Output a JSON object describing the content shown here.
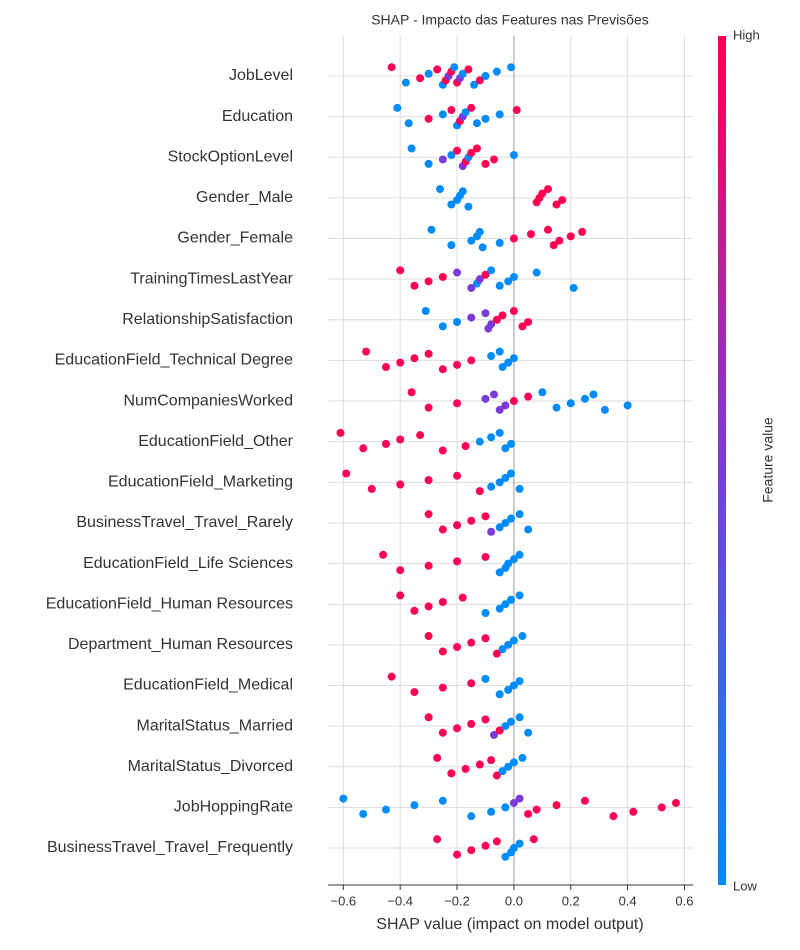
{
  "chart_data": {
    "type": "beeswarm",
    "title": "SHAP - Impacto das Features nas Previsões",
    "xlabel": "SHAP value (impact on model output)",
    "xlim": [
      -0.654,
      0.63
    ],
    "xticks": [
      {
        "value": -0.6,
        "label": "−0.6"
      },
      {
        "value": -0.4,
        "label": "−0.4"
      },
      {
        "value": -0.2,
        "label": "−0.2"
      },
      {
        "value": 0,
        "label": "0.0"
      },
      0.2,
      0.4,
      0.6
    ],
    "grid": true,
    "colorbar": {
      "label": "Feature value",
      "high": "High",
      "low": "Low",
      "colors": [
        "#008bfb",
        "#7c3ad8",
        "#ff0052"
      ]
    },
    "series": [
      {
        "name": "JobLevel",
        "values": [
          -0.43,
          -0.38,
          -0.33,
          -0.3,
          -0.27,
          -0.25,
          -0.24,
          -0.23,
          -0.22,
          -0.21,
          -0.2,
          -0.19,
          -0.18,
          -0.16,
          -0.14,
          -0.12,
          -0.1,
          -0.06,
          -0.01
        ],
        "feature_values": [
          1,
          0,
          1,
          0,
          1,
          0,
          1,
          0.5,
          1,
          0,
          1,
          0.5,
          0,
          1,
          0,
          1,
          0,
          0,
          0
        ]
      },
      {
        "name": "Education",
        "values": [
          -0.41,
          -0.37,
          -0.3,
          -0.25,
          -0.22,
          -0.2,
          -0.19,
          -0.18,
          -0.17,
          -0.15,
          -0.13,
          -0.1,
          -0.05,
          0.01
        ],
        "feature_values": [
          0,
          0,
          1,
          0,
          1,
          0,
          1,
          0.5,
          0,
          1,
          0,
          0,
          0,
          1
        ]
      },
      {
        "name": "StockOptionLevel",
        "values": [
          -0.36,
          -0.3,
          -0.25,
          -0.22,
          -0.2,
          -0.18,
          -0.17,
          -0.16,
          -0.15,
          -0.13,
          -0.1,
          -0.07,
          0.0
        ],
        "feature_values": [
          0,
          0,
          0.5,
          0,
          1,
          0.5,
          1,
          0,
          1,
          1,
          1,
          1,
          0
        ]
      },
      {
        "name": "Gender_Male",
        "values": [
          -0.26,
          -0.22,
          -0.2,
          -0.19,
          -0.18,
          -0.16,
          0.08,
          0.09,
          0.1,
          0.12,
          0.15,
          0.17
        ],
        "feature_values": [
          0,
          0,
          0,
          0,
          0,
          0,
          1,
          1,
          1,
          1,
          1,
          1
        ]
      },
      {
        "name": "Gender_Female",
        "values": [
          -0.29,
          -0.22,
          -0.15,
          -0.13,
          -0.12,
          -0.11,
          -0.05,
          0.0,
          0.06,
          0.12,
          0.14,
          0.16,
          0.2,
          0.24
        ],
        "feature_values": [
          0,
          0,
          0,
          0,
          0,
          0,
          0,
          1,
          1,
          1,
          1,
          1,
          1,
          1
        ]
      },
      {
        "name": "TrainingTimesLastYear",
        "values": [
          -0.4,
          -0.35,
          -0.3,
          -0.25,
          -0.2,
          -0.15,
          -0.13,
          -0.12,
          -0.1,
          -0.08,
          -0.05,
          -0.02,
          0.0,
          0.08,
          0.21
        ],
        "feature_values": [
          1,
          1,
          1,
          1,
          0.5,
          0.5,
          0,
          0.5,
          1,
          0,
          0,
          0,
          0,
          0,
          0
        ]
      },
      {
        "name": "RelationshipSatisfaction",
        "values": [
          -0.31,
          -0.25,
          -0.2,
          -0.15,
          -0.1,
          -0.09,
          -0.08,
          -0.06,
          -0.04,
          0.0,
          0.03,
          0.05
        ],
        "feature_values": [
          0,
          0,
          0,
          0.5,
          0.5,
          0.5,
          0.5,
          1,
          1,
          1,
          1,
          1
        ]
      },
      {
        "name": "EducationField_Technical Degree",
        "values": [
          -0.52,
          -0.45,
          -0.4,
          -0.35,
          -0.3,
          -0.25,
          -0.2,
          -0.15,
          -0.08,
          -0.05,
          -0.04,
          -0.02,
          0.0
        ],
        "feature_values": [
          1,
          1,
          1,
          1,
          1,
          1,
          1,
          1,
          0,
          0,
          0,
          0,
          0
        ]
      },
      {
        "name": "NumCompaniesWorked",
        "values": [
          -0.36,
          -0.3,
          -0.2,
          -0.1,
          -0.07,
          -0.05,
          -0.03,
          0.0,
          0.05,
          0.1,
          0.15,
          0.2,
          0.25,
          0.28,
          0.32,
          0.4
        ],
        "feature_values": [
          1,
          1,
          1,
          0.5,
          0.5,
          0.5,
          0.5,
          1,
          1,
          0,
          0,
          0,
          0,
          0,
          0,
          0
        ]
      },
      {
        "name": "EducationField_Other",
        "values": [
          -0.61,
          -0.53,
          -0.45,
          -0.4,
          -0.33,
          -0.25,
          -0.17,
          -0.12,
          -0.08,
          -0.05,
          -0.03,
          -0.01
        ],
        "feature_values": [
          1,
          1,
          1,
          1,
          1,
          1,
          1,
          0,
          0,
          0,
          0,
          0
        ]
      },
      {
        "name": "EducationField_Marketing",
        "values": [
          -0.59,
          -0.5,
          -0.4,
          -0.3,
          -0.2,
          -0.12,
          -0.08,
          -0.05,
          -0.03,
          -0.01,
          0.02
        ],
        "feature_values": [
          1,
          1,
          1,
          1,
          1,
          1,
          0,
          0,
          0,
          0,
          0
        ]
      },
      {
        "name": "BusinessTravel_Travel_Rarely",
        "values": [
          -0.3,
          -0.25,
          -0.2,
          -0.15,
          -0.1,
          -0.08,
          -0.05,
          -0.03,
          -0.01,
          0.02,
          0.05
        ],
        "feature_values": [
          1,
          1,
          1,
          1,
          1,
          0.5,
          0,
          0,
          0,
          0,
          0
        ]
      },
      {
        "name": "EducationField_Life Sciences",
        "values": [
          -0.46,
          -0.4,
          -0.3,
          -0.2,
          -0.1,
          -0.05,
          -0.03,
          -0.02,
          0.0,
          0.02
        ],
        "feature_values": [
          1,
          1,
          1,
          1,
          1,
          0,
          0,
          0,
          0,
          0
        ]
      },
      {
        "name": "EducationField_Human Resources",
        "values": [
          -0.4,
          -0.35,
          -0.3,
          -0.25,
          -0.18,
          -0.1,
          -0.05,
          -0.03,
          -0.01,
          0.02
        ],
        "feature_values": [
          1,
          1,
          1,
          1,
          1,
          0,
          0,
          0,
          0,
          0
        ]
      },
      {
        "name": "Department_Human Resources",
        "values": [
          -0.3,
          -0.25,
          -0.2,
          -0.15,
          -0.1,
          -0.06,
          -0.04,
          -0.02,
          0.0,
          0.03
        ],
        "feature_values": [
          1,
          1,
          1,
          1,
          1,
          1,
          0,
          0,
          0,
          0
        ]
      },
      {
        "name": "EducationField_Medical",
        "values": [
          -0.43,
          -0.35,
          -0.25,
          -0.15,
          -0.1,
          -0.05,
          -0.02,
          0.0,
          0.02
        ],
        "feature_values": [
          1,
          1,
          1,
          1,
          0,
          0,
          0,
          0,
          0
        ]
      },
      {
        "name": "MaritalStatus_Married",
        "values": [
          -0.3,
          -0.25,
          -0.2,
          -0.15,
          -0.1,
          -0.07,
          -0.05,
          -0.03,
          -0.01,
          0.02,
          0.05
        ],
        "feature_values": [
          1,
          1,
          1,
          1,
          1,
          0.5,
          1,
          0,
          0,
          0,
          0
        ]
      },
      {
        "name": "MaritalStatus_Divorced",
        "values": [
          -0.27,
          -0.22,
          -0.17,
          -0.12,
          -0.08,
          -0.06,
          -0.04,
          -0.02,
          0.0,
          0.03
        ],
        "feature_values": [
          1,
          1,
          1,
          1,
          1,
          1,
          0,
          0,
          0,
          0
        ]
      },
      {
        "name": "JobHoppingRate",
        "values": [
          -0.6,
          -0.53,
          -0.45,
          -0.35,
          -0.25,
          -0.15,
          -0.08,
          -0.03,
          0.0,
          0.02,
          0.05,
          0.08,
          0.15,
          0.25,
          0.35,
          0.42,
          0.52,
          0.57
        ],
        "feature_values": [
          0,
          0,
          0,
          0,
          0,
          0,
          0,
          0,
          0.5,
          0.5,
          1,
          1,
          1,
          1,
          1,
          1,
          1,
          1
        ]
      },
      {
        "name": "BusinessTravel_Travel_Frequently",
        "values": [
          -0.27,
          -0.2,
          -0.15,
          -0.1,
          -0.06,
          -0.03,
          -0.01,
          0.0,
          0.02,
          0.07
        ],
        "feature_values": [
          1,
          1,
          1,
          1,
          1,
          0,
          0,
          0,
          0,
          1
        ]
      }
    ]
  }
}
